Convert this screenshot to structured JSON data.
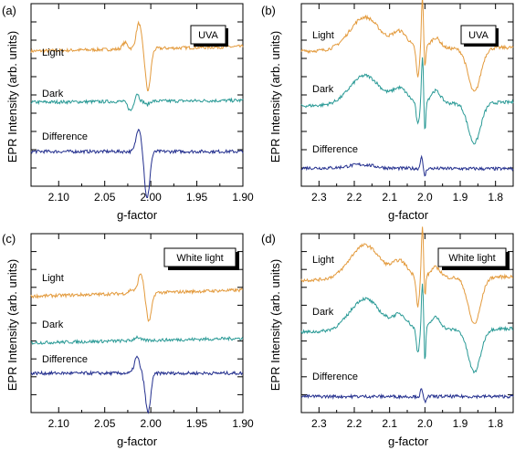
{
  "figure": {
    "panels": [
      {
        "label": "(a)",
        "box_label": "UVA",
        "ylabel": "EPR Intensity (arb. units)",
        "xlabel": "g-factor"
      },
      {
        "label": "(b)",
        "box_label": "UVA",
        "ylabel": "EPR Intensity (arb. units)",
        "xlabel": "g-factor"
      },
      {
        "label": "(c)",
        "box_label": "White light",
        "ylabel": "EPR Intensity (arb. units)",
        "xlabel": "g-factor"
      },
      {
        "label": "(d)",
        "box_label": "White light",
        "ylabel": "EPR Intensity (arb. units)",
        "xlabel": "g-factor"
      }
    ]
  },
  "colors": {
    "light": "#E39A3C",
    "dark": "#2A9A96",
    "difference": "#232F8E"
  },
  "chart_data": [
    {
      "type": "line",
      "panel": "(a)",
      "xlabel": "g-factor",
      "ylabel": "EPR Intensity (arb. units)",
      "xlim": [
        2.13,
        1.9
      ],
      "ylim": [
        0,
        10
      ],
      "x_reversed": true,
      "xticks": [
        "2.10",
        "2.05",
        "2.00",
        "1.95",
        "1.90"
      ],
      "annotation": "UVA",
      "series": [
        {
          "name": "Light",
          "baseline": 7.4,
          "slope": 0.25,
          "features": [
            [
              2.028,
              0.004,
              0.35
            ],
            [
              2.013,
              0.004,
              1.4
            ],
            [
              2.003,
              0.004,
              -2.3
            ]
          ]
        },
        {
          "name": "Dark",
          "baseline": 4.6,
          "slope": 0.1,
          "features": [
            [
              2.022,
              0.004,
              -0.5
            ],
            [
              2.015,
              0.003,
              0.45
            ],
            [
              2.004,
              0.003,
              -0.2
            ]
          ]
        },
        {
          "name": "Difference",
          "baseline": 1.9,
          "slope": 0.0,
          "features": [
            [
              2.013,
              0.004,
              1.3
            ],
            [
              2.004,
              0.004,
              -2.6
            ]
          ]
        }
      ]
    },
    {
      "type": "line",
      "panel": "(b)",
      "xlabel": "g-factor",
      "ylabel": "EPR Intensity (arb. units)",
      "xlim": [
        2.35,
        1.75
      ],
      "ylim": [
        0,
        10
      ],
      "x_reversed": true,
      "xticks": [
        "2.3",
        "2.2",
        "2.1",
        "2.0",
        "1.9",
        "1.8"
      ],
      "annotation": "UVA",
      "series": [
        {
          "name": "Light",
          "baseline": 7.4,
          "slope": 0.2,
          "features": [
            [
              2.17,
              0.06,
              1.8
            ],
            [
              2.07,
              0.03,
              0.9
            ],
            [
              2.02,
              0.006,
              -1.6
            ],
            [
              2.007,
              0.004,
              2.8
            ],
            [
              2.0,
              0.003,
              -1.2
            ],
            [
              1.97,
              0.02,
              0.6
            ],
            [
              1.86,
              0.025,
              -2.4
            ]
          ]
        },
        {
          "name": "Dark",
          "baseline": 4.4,
          "slope": 0.2,
          "features": [
            [
              2.17,
              0.06,
              1.6
            ],
            [
              2.07,
              0.03,
              0.8
            ],
            [
              2.02,
              0.006,
              -1.2
            ],
            [
              2.007,
              0.004,
              2.5
            ],
            [
              2.0,
              0.003,
              -1.8
            ],
            [
              1.97,
              0.02,
              0.7
            ],
            [
              1.86,
              0.025,
              -2.2
            ]
          ]
        },
        {
          "name": "Difference",
          "baseline": 1.0,
          "slope": -0.05,
          "features": [
            [
              2.18,
              0.05,
              0.2
            ],
            [
              2.01,
              0.004,
              0.7
            ],
            [
              2.0,
              0.004,
              -0.4
            ]
          ]
        }
      ]
    },
    {
      "type": "line",
      "panel": "(c)",
      "xlabel": "g-factor",
      "ylabel": "EPR Intensity (arb. units)",
      "xlim": [
        2.13,
        1.9
      ],
      "ylim": [
        0,
        10
      ],
      "x_reversed": true,
      "xticks": [
        "2.10",
        "2.05",
        "2.00",
        "1.95",
        "1.90"
      ],
      "annotation": "White light",
      "series": [
        {
          "name": "Light",
          "baseline": 6.5,
          "slope": 0.35,
          "features": [
            [
              2.021,
              0.004,
              0.2
            ],
            [
              2.011,
              0.004,
              1.1
            ],
            [
              2.002,
              0.004,
              -1.6
            ]
          ]
        },
        {
          "name": "Dark",
          "baseline": 3.9,
          "slope": 0.25,
          "features": [
            [
              2.015,
              0.004,
              0.2
            ]
          ]
        },
        {
          "name": "Difference",
          "baseline": 2.2,
          "slope": 0.0,
          "features": [
            [
              2.015,
              0.004,
              0.9
            ],
            [
              2.003,
              0.004,
              -2.2
            ]
          ]
        }
      ]
    },
    {
      "type": "line",
      "panel": "(d)",
      "xlabel": "g-factor",
      "ylabel": "EPR Intensity (arb. units)",
      "xlim": [
        2.35,
        1.75
      ],
      "ylim": [
        0,
        10
      ],
      "x_reversed": true,
      "xticks": [
        "2.3",
        "2.2",
        "2.1",
        "2.0",
        "1.9",
        "1.8"
      ],
      "annotation": "White light",
      "series": [
        {
          "name": "Light",
          "baseline": 7.4,
          "slope": 0.2,
          "features": [
            [
              2.17,
              0.06,
              1.9
            ],
            [
              2.07,
              0.03,
              0.9
            ],
            [
              2.02,
              0.006,
              -1.6
            ],
            [
              2.007,
              0.004,
              2.9
            ],
            [
              2.0,
              0.003,
              -1.2
            ],
            [
              1.97,
              0.02,
              0.6
            ],
            [
              1.86,
              0.025,
              -2.6
            ]
          ]
        },
        {
          "name": "Dark",
          "baseline": 4.5,
          "slope": 0.2,
          "features": [
            [
              2.17,
              0.06,
              1.8
            ],
            [
              2.07,
              0.03,
              0.8
            ],
            [
              2.02,
              0.006,
              -1.3
            ],
            [
              2.007,
              0.004,
              2.6
            ],
            [
              2.0,
              0.003,
              -2.0
            ],
            [
              1.97,
              0.02,
              0.7
            ],
            [
              1.86,
              0.025,
              -2.4
            ]
          ]
        },
        {
          "name": "Difference",
          "baseline": 0.9,
          "slope": 0.0,
          "features": [
            [
              2.01,
              0.004,
              0.4
            ],
            [
              2.0,
              0.004,
              -0.3
            ]
          ]
        }
      ]
    }
  ]
}
